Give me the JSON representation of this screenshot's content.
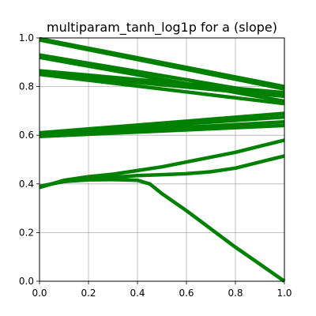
{
  "chart_data": {
    "type": "line",
    "title": "multiparam_tanh_log1p for a (slope)",
    "xlabel": "",
    "ylabel": "",
    "xlim": [
      0,
      1
    ],
    "ylim": [
      0,
      1
    ],
    "xticks": [
      "0.0",
      "0.2",
      "0.4",
      "0.6",
      "0.8",
      "1.0"
    ],
    "yticks": [
      "0.0",
      "0.2",
      "0.4",
      "0.6",
      "0.8",
      "1.0"
    ],
    "grid": true,
    "legend": "none",
    "color": "#008000",
    "series": [
      {
        "points": [
          [
            0,
            0.997
          ],
          [
            1,
            0.8
          ]
        ]
      },
      {
        "points": [
          [
            0,
            0.992
          ],
          [
            1,
            0.79
          ]
        ]
      },
      {
        "points": [
          [
            0,
            0.93
          ],
          [
            1,
            0.76
          ]
        ]
      },
      {
        "points": [
          [
            0,
            0.92
          ],
          [
            1,
            0.74
          ]
        ]
      },
      {
        "points": [
          [
            0,
            0.865
          ],
          [
            1,
            0.775
          ]
        ]
      },
      {
        "points": [
          [
            0,
            0.855
          ],
          [
            1,
            0.76
          ]
        ]
      },
      {
        "points": [
          [
            0,
            0.85
          ],
          [
            1,
            0.73
          ]
        ]
      },
      {
        "points": [
          [
            0,
            0.61
          ],
          [
            1,
            0.69
          ]
        ]
      },
      {
        "points": [
          [
            0,
            0.605
          ],
          [
            1,
            0.675
          ]
        ]
      },
      {
        "points": [
          [
            0,
            0.6
          ],
          [
            1,
            0.655
          ]
        ]
      },
      {
        "points": [
          [
            0,
            0.595
          ],
          [
            1,
            0.64
          ]
        ]
      },
      {
        "points": [
          [
            0,
            0.385
          ],
          [
            0.1,
            0.415
          ],
          [
            0.2,
            0.43
          ],
          [
            0.3,
            0.44
          ],
          [
            0.4,
            0.455
          ],
          [
            0.5,
            0.47
          ],
          [
            0.6,
            0.49
          ],
          [
            0.7,
            0.51
          ],
          [
            0.8,
            0.53
          ],
          [
            0.9,
            0.555
          ],
          [
            1,
            0.58
          ]
        ]
      },
      {
        "points": [
          [
            0,
            0.39
          ],
          [
            0.1,
            0.41
          ],
          [
            0.2,
            0.42
          ],
          [
            0.3,
            0.427
          ],
          [
            0.4,
            0.434
          ],
          [
            0.5,
            0.438
          ],
          [
            0.6,
            0.442
          ],
          [
            0.7,
            0.45
          ],
          [
            0.8,
            0.465
          ],
          [
            0.9,
            0.49
          ],
          [
            1,
            0.515
          ]
        ]
      },
      {
        "points": [
          [
            0,
            0.39
          ],
          [
            0.1,
            0.41
          ],
          [
            0.2,
            0.417
          ],
          [
            0.3,
            0.418
          ],
          [
            0.4,
            0.415
          ],
          [
            0.45,
            0.4
          ],
          [
            0.5,
            0.36
          ],
          [
            0.6,
            0.29
          ],
          [
            0.7,
            0.215
          ],
          [
            0.8,
            0.14
          ],
          [
            0.9,
            0.07
          ],
          [
            1,
            0.0
          ]
        ]
      }
    ]
  }
}
